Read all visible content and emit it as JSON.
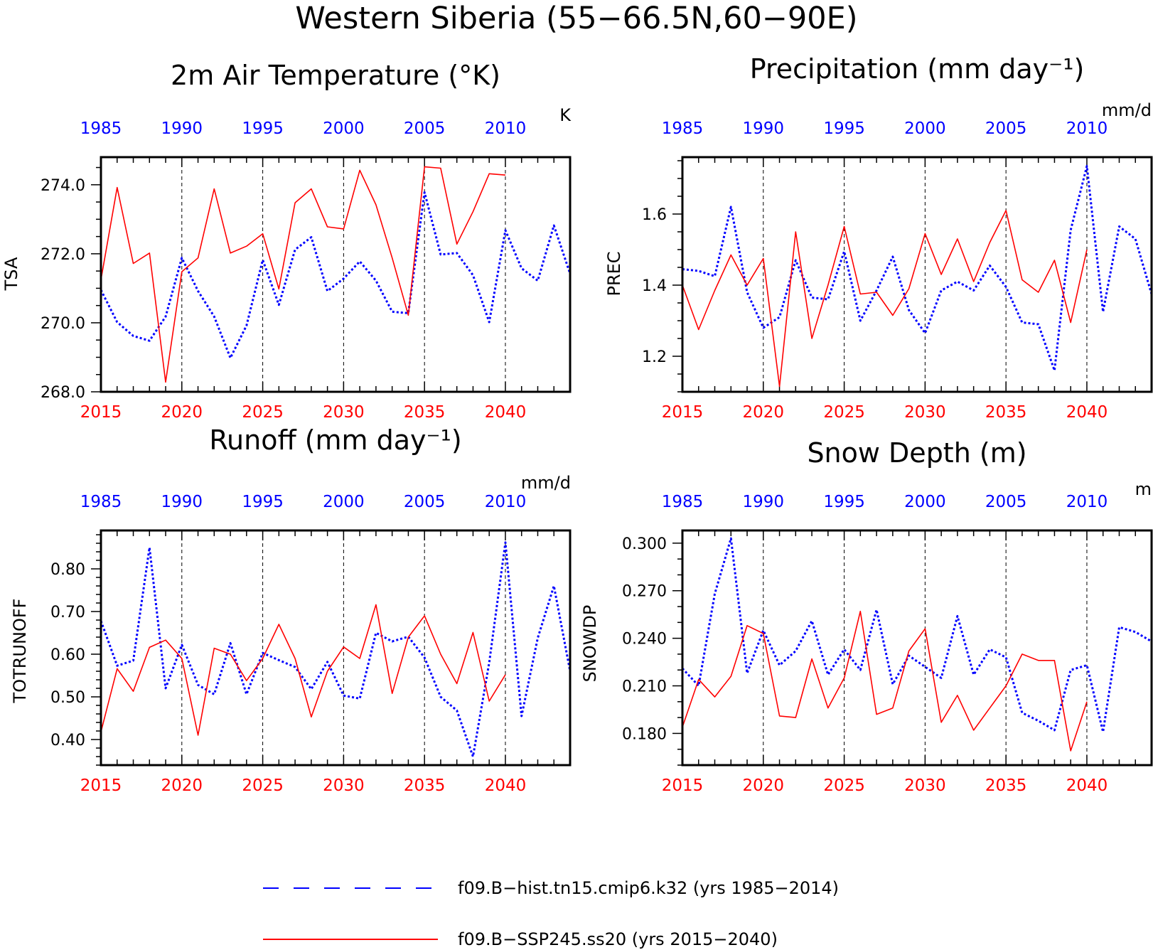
{
  "figure": {
    "title": "Western Siberia (55−66.5N,60−90E)",
    "colors": {
      "hist": "#0000ff",
      "ssp": "#ff0000",
      "frame": "#000000",
      "grid": "#000000"
    }
  },
  "legend": [
    {
      "label": "f09.B−hist.tn15.cmip6.k32 (yrs 1985−2014)",
      "color": "#0000ff",
      "style": "dashed"
    },
    {
      "label": "f09.B−SSP245.ss20 (yrs 2015−2040)",
      "color": "#ff0000",
      "style": "solid"
    }
  ],
  "chart_data": [
    {
      "type": "line",
      "title": "2m Air Temperature (°K)",
      "units": "K",
      "ylabel": "TSA",
      "ylim": [
        268.0,
        274.8
      ],
      "yticks": [
        268.0,
        270.0,
        272.0,
        274.0
      ],
      "yticklabels": [
        "268.0",
        "270.0",
        "272.0",
        "274.0"
      ],
      "yminor": 0.5,
      "bottom_axis": {
        "range": [
          2015,
          2044
        ],
        "ticks": [
          "2015",
          "2020",
          "2025",
          "2030",
          "2035",
          "2040"
        ]
      },
      "top_axis": {
        "range": [
          1985,
          2014
        ],
        "ticks": [
          "1985",
          "1990",
          "1995",
          "2000",
          "2005",
          "2010"
        ]
      },
      "grid_x": [
        2020,
        2025,
        2030,
        2035,
        2040
      ],
      "series": [
        {
          "key": "hist",
          "x_start": 1985,
          "values": [
            270.95,
            270.02,
            269.62,
            269.48,
            270.18,
            271.88,
            270.92,
            270.18,
            268.98,
            269.92,
            271.82,
            270.52,
            272.12,
            272.48,
            270.92,
            271.28,
            271.78,
            271.22,
            270.32,
            270.28,
            273.78,
            271.98,
            272.02,
            271.38,
            270.02,
            272.68,
            271.58,
            271.22,
            272.82,
            271.42
          ]
        },
        {
          "key": "ssp",
          "x_start": 2015,
          "values": [
            271.25,
            273.92,
            271.72,
            272.02,
            268.28,
            271.48,
            271.88,
            273.88,
            272.02,
            272.22,
            272.58,
            270.98,
            273.48,
            273.88,
            272.78,
            272.72,
            274.42,
            273.42,
            271.88,
            270.22,
            274.52,
            274.48,
            272.28,
            273.22,
            274.32,
            274.28
          ]
        }
      ]
    },
    {
      "type": "line",
      "title": "Precipitation (mm day⁻¹)",
      "units": "mm/d",
      "ylabel": "PREC",
      "ylim": [
        1.1,
        1.76
      ],
      "yticks": [
        1.2,
        1.4,
        1.6
      ],
      "yticklabels": [
        "1.2",
        "1.4",
        "1.6"
      ],
      "yminor": 0.05,
      "bottom_axis": {
        "range": [
          2015,
          2044
        ],
        "ticks": [
          "2015",
          "2020",
          "2025",
          "2030",
          "2035",
          "2040"
        ]
      },
      "top_axis": {
        "range": [
          1985,
          2014
        ],
        "ticks": [
          "1985",
          "1990",
          "1995",
          "2000",
          "2005",
          "2010"
        ]
      },
      "grid_x": [
        2020,
        2025,
        2030,
        2035,
        2040
      ],
      "series": [
        {
          "key": "hist",
          "x_start": 1985,
          "values": [
            1.445,
            1.44,
            1.425,
            1.62,
            1.38,
            1.28,
            1.31,
            1.47,
            1.365,
            1.36,
            1.495,
            1.3,
            1.385,
            1.48,
            1.33,
            1.265,
            1.385,
            1.41,
            1.385,
            1.455,
            1.395,
            1.295,
            1.29,
            1.16,
            1.555,
            1.735,
            1.325,
            1.565,
            1.53,
            1.375
          ]
        },
        {
          "key": "ssp",
          "x_start": 2015,
          "values": [
            1.4,
            1.275,
            1.385,
            1.485,
            1.4,
            1.475,
            1.115,
            1.55,
            1.25,
            1.4,
            1.565,
            1.375,
            1.38,
            1.315,
            1.39,
            1.545,
            1.43,
            1.53,
            1.41,
            1.52,
            1.61,
            1.415,
            1.38,
            1.47,
            1.295,
            1.5
          ]
        }
      ]
    },
    {
      "type": "line",
      "title": "Runoff (mm day⁻¹)",
      "units": "mm/d",
      "ylabel": "TOTRUNOFF",
      "ylim": [
        0.34,
        0.89
      ],
      "yticks": [
        0.4,
        0.5,
        0.6,
        0.7,
        0.8
      ],
      "yticklabels": [
        "0.40",
        "0.50",
        "0.60",
        "0.70",
        "0.80"
      ],
      "yminor": 0.02,
      "bottom_axis": {
        "range": [
          2015,
          2044
        ],
        "ticks": [
          "2015",
          "2020",
          "2025",
          "2030",
          "2035",
          "2040"
        ]
      },
      "top_axis": {
        "range": [
          1985,
          2014
        ],
        "ticks": [
          "1985",
          "1990",
          "1995",
          "2000",
          "2005",
          "2010"
        ]
      },
      "grid_x": [
        2020,
        2025,
        2030,
        2035,
        2040
      ],
      "series": [
        {
          "key": "hist",
          "x_start": 1985,
          "values": [
            0.678,
            0.573,
            0.585,
            0.85,
            0.52,
            0.622,
            0.528,
            0.506,
            0.626,
            0.506,
            0.603,
            0.586,
            0.57,
            0.518,
            0.582,
            0.503,
            0.496,
            0.65,
            0.63,
            0.641,
            0.592,
            0.5,
            0.468,
            0.36,
            0.58,
            0.862,
            0.455,
            0.638,
            0.76,
            0.56
          ]
        },
        {
          "key": "ssp",
          "x_start": 2015,
          "values": [
            0.418,
            0.566,
            0.513,
            0.616,
            0.633,
            0.59,
            0.41,
            0.614,
            0.6,
            0.538,
            0.59,
            0.67,
            0.59,
            0.453,
            0.56,
            0.617,
            0.59,
            0.716,
            0.508,
            0.64,
            0.69,
            0.6,
            0.531,
            0.651,
            0.49,
            0.552
          ]
        }
      ]
    },
    {
      "type": "line",
      "title": "Snow Depth (m)",
      "units": "m",
      "ylabel": "SNOWDP",
      "ylim": [
        0.16,
        0.308
      ],
      "yticks": [
        0.18,
        0.21,
        0.24,
        0.27,
        0.3
      ],
      "yticklabels": [
        "0.180",
        "0.210",
        "0.240",
        "0.270",
        "0.300"
      ],
      "yminor": 0.01,
      "bottom_axis": {
        "range": [
          2015,
          2044
        ],
        "ticks": [
          "2015",
          "2020",
          "2025",
          "2030",
          "2035",
          "2040"
        ]
      },
      "top_axis": {
        "range": [
          1985,
          2014
        ],
        "ticks": [
          "1985",
          "1990",
          "1995",
          "2000",
          "2005",
          "2010"
        ]
      },
      "grid_x": [
        2020,
        2025,
        2030,
        2035,
        2040
      ],
      "series": [
        {
          "key": "hist",
          "x_start": 1985,
          "values": [
            0.221,
            0.21,
            0.268,
            0.303,
            0.218,
            0.245,
            0.223,
            0.232,
            0.251,
            0.217,
            0.233,
            0.22,
            0.258,
            0.211,
            0.229,
            0.222,
            0.215,
            0.254,
            0.217,
            0.233,
            0.228,
            0.193,
            0.188,
            0.182,
            0.22,
            0.223,
            0.181,
            0.247,
            0.244,
            0.238
          ]
        },
        {
          "key": "ssp",
          "x_start": 2015,
          "values": [
            0.184,
            0.214,
            0.203,
            0.216,
            0.248,
            0.243,
            0.191,
            0.19,
            0.227,
            0.196,
            0.215,
            0.257,
            0.192,
            0.196,
            0.232,
            0.246,
            0.187,
            0.204,
            0.182,
            0.196,
            0.21,
            0.23,
            0.226,
            0.226,
            0.169,
            0.2
          ]
        }
      ]
    }
  ]
}
